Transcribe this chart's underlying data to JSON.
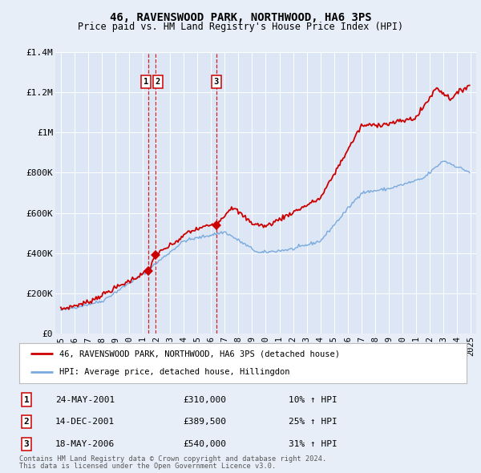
{
  "title": "46, RAVENSWOOD PARK, NORTHWOOD, HA6 3PS",
  "subtitle": "Price paid vs. HM Land Registry's House Price Index (HPI)",
  "legend_line1": "46, RAVENSWOOD PARK, NORTHWOOD, HA6 3PS (detached house)",
  "legend_line2": "HPI: Average price, detached house, Hillingdon",
  "footer1": "Contains HM Land Registry data © Crown copyright and database right 2024.",
  "footer2": "This data is licensed under the Open Government Licence v3.0.",
  "transactions": [
    {
      "num": 1,
      "date": "24-MAY-2001",
      "price": "£310,000",
      "hpi": "10% ↑ HPI",
      "year": 2001.38
    },
    {
      "num": 2,
      "date": "14-DEC-2001",
      "price": "£389,500",
      "hpi": "25% ↑ HPI",
      "year": 2001.95
    },
    {
      "num": 3,
      "date": "18-MAY-2006",
      "price": "£540,000",
      "hpi": "31% ↑ HPI",
      "year": 2006.38
    }
  ],
  "ylim": [
    0,
    1400000
  ],
  "xlim": [
    1994.6,
    2025.4
  ],
  "yticks": [
    0,
    200000,
    400000,
    600000,
    800000,
    1000000,
    1200000,
    1400000
  ],
  "ytick_labels": [
    "£0",
    "£200K",
    "£400K",
    "£600K",
    "£800K",
    "£1M",
    "£1.2M",
    "£1.4M"
  ],
  "xticks": [
    1995,
    1996,
    1997,
    1998,
    1999,
    2000,
    2001,
    2002,
    2003,
    2004,
    2005,
    2006,
    2007,
    2008,
    2009,
    2010,
    2011,
    2012,
    2013,
    2014,
    2015,
    2016,
    2017,
    2018,
    2019,
    2020,
    2021,
    2022,
    2023,
    2024,
    2025
  ],
  "red_color": "#cc0000",
  "blue_color": "#7aaadd",
  "vline_color": "#cc0000",
  "grid_color": "#ffffff",
  "border_color": "#cc0000",
  "bg_color": "#e8eef8",
  "plot_bg": "#dce6f5"
}
